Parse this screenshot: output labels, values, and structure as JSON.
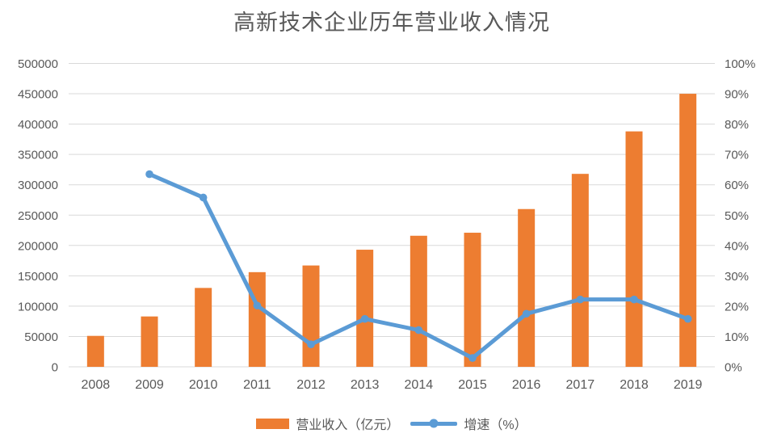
{
  "page": {
    "background": "#ffffff",
    "text_color": "#595959",
    "grid_color": "#d9d9d9"
  },
  "chart_data": {
    "type": "combo-bar-line",
    "title": "高新技术企业历年营业收入情况",
    "categories": [
      "2008",
      "2009",
      "2010",
      "2011",
      "2012",
      "2013",
      "2014",
      "2015",
      "2016",
      "2017",
      "2018",
      "2019"
    ],
    "series": [
      {
        "name": "营业收入（亿元）",
        "type": "bar",
        "axis": "left",
        "color": "#ED7D31",
        "values": [
          51000,
          83000,
          130000,
          156000,
          167000,
          193000,
          216000,
          221000,
          260000,
          318000,
          388000,
          450000
        ]
      },
      {
        "name": "增速（%）",
        "type": "line",
        "axis": "right",
        "color": "#5B9BD5",
        "values": [
          null,
          63.5,
          55.8,
          20.2,
          7.4,
          15.8,
          12.1,
          2.9,
          17.5,
          22.2,
          22.2,
          15.8
        ]
      }
    ],
    "left_axis": {
      "min": 0,
      "max": 500000,
      "step": 50000,
      "ticks": [
        "0",
        "50000",
        "100000",
        "150000",
        "200000",
        "250000",
        "300000",
        "350000",
        "400000",
        "450000",
        "500000"
      ]
    },
    "right_axis": {
      "min": 0,
      "max": 100,
      "step": 10,
      "ticks": [
        "0%",
        "10%",
        "20%",
        "30%",
        "40%",
        "50%",
        "60%",
        "70%",
        "80%",
        "90%",
        "100%"
      ]
    },
    "grid": true,
    "legend_position": "bottom"
  }
}
